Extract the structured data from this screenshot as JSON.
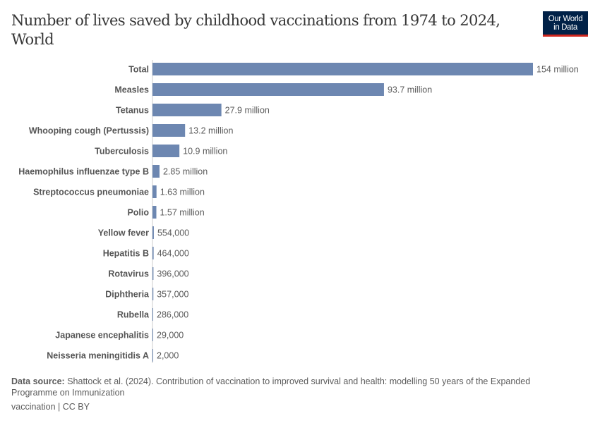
{
  "title": "Number of lives saved by childhood vaccinations from 1974 to 2024, World",
  "logo": {
    "line1": "Our World",
    "line2": "in Data",
    "bg": "#002147",
    "accent": "#ce261e"
  },
  "chart_data": {
    "type": "bar",
    "orientation": "horizontal",
    "categories": [
      "Total",
      "Measles",
      "Tetanus",
      "Whooping cough (Pertussis)",
      "Tuberculosis",
      "Haemophilus influenzae type B",
      "Streptococcus pneumoniae",
      "Polio",
      "Yellow fever",
      "Hepatitis B",
      "Rotavirus",
      "Diphtheria",
      "Rubella",
      "Japanese encephalitis",
      "Neisseria meningitidis A"
    ],
    "values": [
      154000000,
      93700000,
      27900000,
      13200000,
      10900000,
      2850000,
      1630000,
      1570000,
      554000,
      464000,
      396000,
      357000,
      286000,
      29000,
      2000
    ],
    "labels": [
      "154 million",
      "93.7 million",
      "27.9 million",
      "13.2 million",
      "10.9 million",
      "2.85 million",
      "1.63 million",
      "1.57 million",
      "554,000",
      "464,000",
      "396,000",
      "357,000",
      "286,000",
      "29,000",
      "2,000"
    ],
    "bar_color": "#6d87b1",
    "grid": false
  },
  "footer": {
    "source_label": "Data source:",
    "source_text": "Shattock et al. (2024). Contribution of vaccination to improved survival and health: modelling 50 years of the Expanded Programme on Immunization",
    "license": "vaccination | CC BY"
  }
}
